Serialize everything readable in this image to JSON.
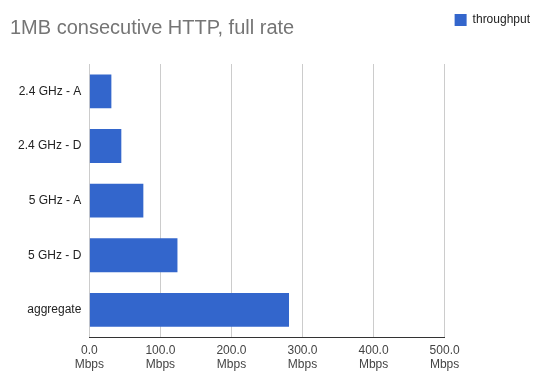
{
  "chart_data": {
    "type": "bar",
    "orientation": "horizontal",
    "title": "1MB consecutive HTTP, full rate",
    "categories": [
      "2.4 GHz - A",
      "2.4 GHz - D",
      "5 GHz - A",
      "5 GHz - D",
      "aggregate"
    ],
    "series": [
      {
        "name": "throughput",
        "color": "#3366cc",
        "values": [
          31,
          45,
          76,
          124,
          281
        ]
      }
    ],
    "xlim": [
      0,
      500
    ],
    "xticks": [
      {
        "value": 0,
        "label": "0.0 Mbps"
      },
      {
        "value": 100,
        "label": "100.0 Mbps"
      },
      {
        "value": 200,
        "label": "200.0 Mbps"
      },
      {
        "value": 300,
        "label": "300.0 Mbps"
      },
      {
        "value": 400,
        "label": "400.0 Mbps"
      },
      {
        "value": 500,
        "label": "500.0 Mbps"
      }
    ],
    "grid": true,
    "legend": "right",
    "data_labels": false
  }
}
